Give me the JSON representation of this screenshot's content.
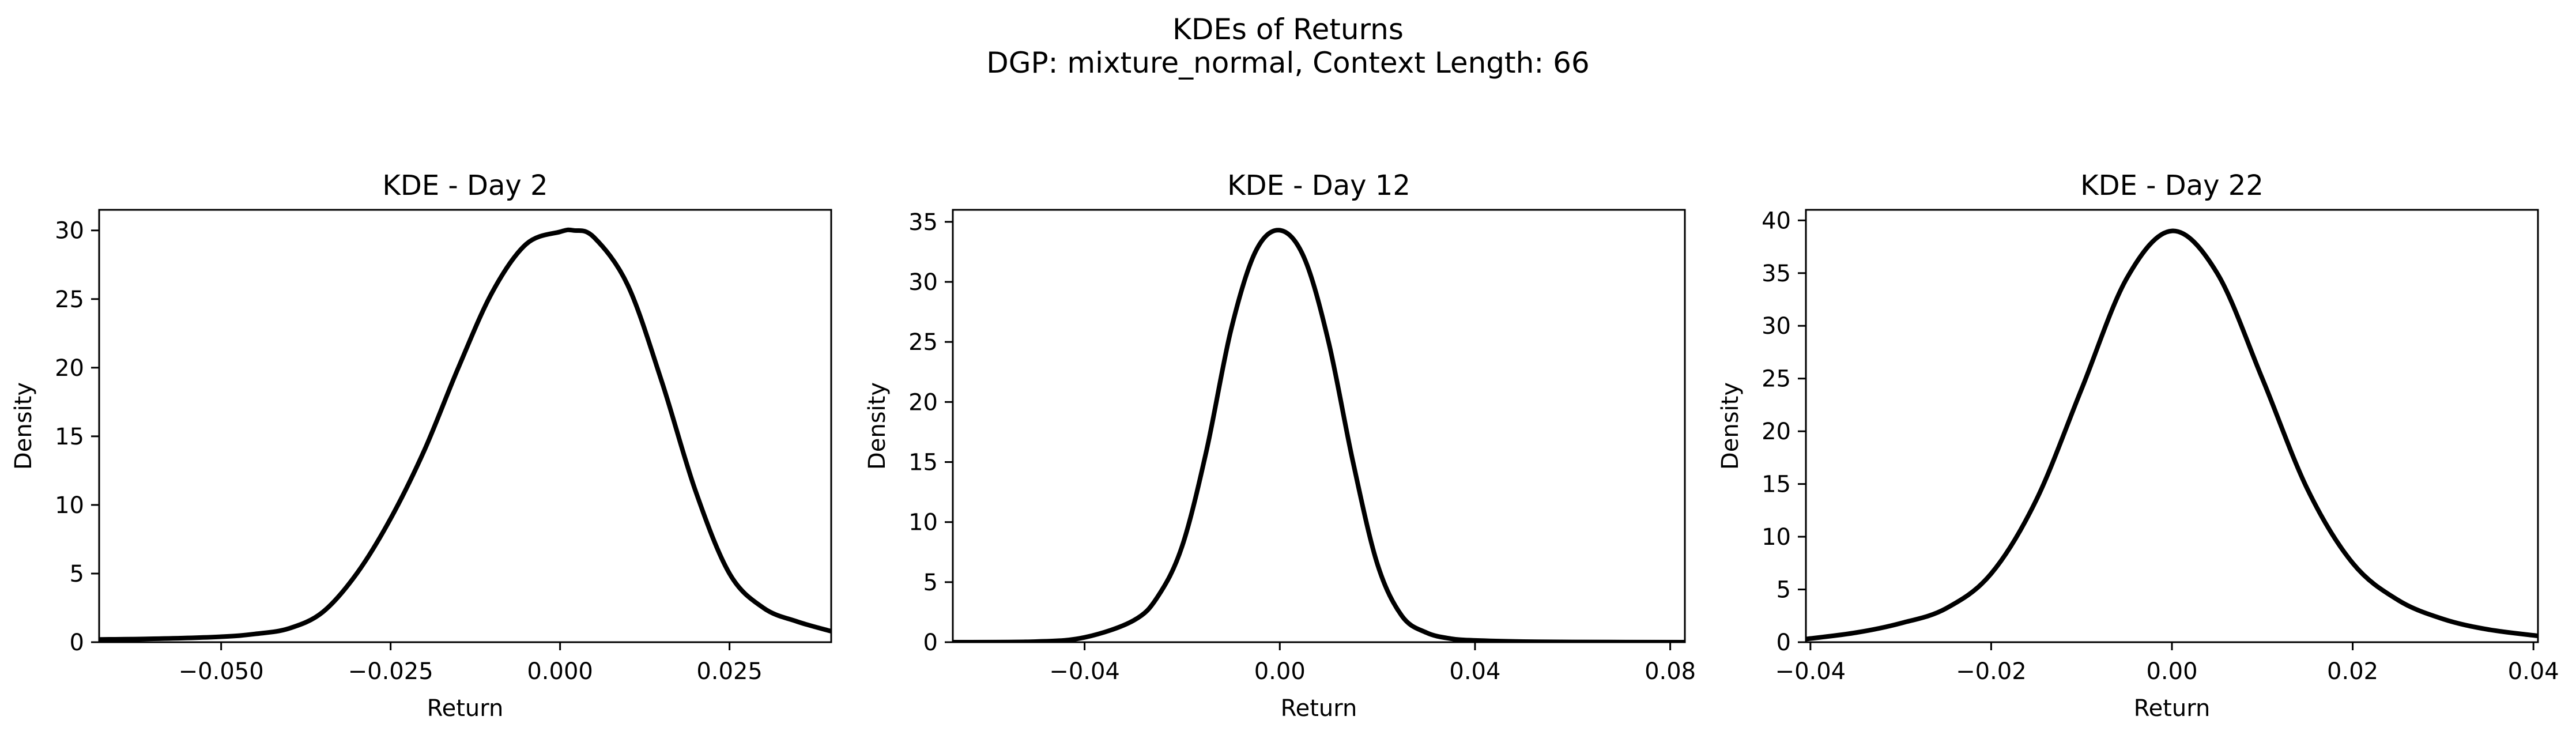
{
  "figure": {
    "title_line1": "KDEs of Returns",
    "title_line2": "DGP: mixture_normal, Context Length: 66",
    "line_color": "#000000",
    "background": "#ffffff"
  },
  "chart_data": [
    {
      "type": "line",
      "title": "KDE - Day 2",
      "xlabel": "Return",
      "ylabel": "Density",
      "xlim": [
        -0.068,
        0.04
      ],
      "ylim": [
        0,
        31.5
      ],
      "xticks": [
        -0.05,
        -0.025,
        0.0,
        0.025
      ],
      "xtick_labels": [
        "−0.050",
        "−0.025",
        "0.000",
        "0.025"
      ],
      "yticks": [
        0,
        5,
        10,
        15,
        20,
        25,
        30
      ],
      "ytick_labels": [
        "0",
        "5",
        "10",
        "15",
        "20",
        "25",
        "30"
      ],
      "grid": false,
      "series": [
        {
          "x": [
            -0.068,
            -0.06,
            -0.05,
            -0.045,
            -0.04,
            -0.035,
            -0.03,
            -0.025,
            -0.02,
            -0.015,
            -0.01,
            -0.005,
            0.0,
            0.002,
            0.005,
            0.01,
            0.015,
            0.02,
            0.025,
            0.03,
            0.035,
            0.04
          ],
          "y": [
            0.2,
            0.25,
            0.4,
            0.6,
            1.0,
            2.2,
            5.0,
            9.0,
            14.0,
            20.0,
            25.5,
            29.0,
            29.9,
            30.0,
            29.5,
            26.0,
            19.0,
            11.0,
            5.0,
            2.5,
            1.5,
            0.8
          ]
        }
      ]
    },
    {
      "type": "line",
      "title": "KDE - Day 12",
      "xlabel": "Return",
      "ylabel": "Density",
      "xlim": [
        -0.067,
        0.083
      ],
      "ylim": [
        0,
        36
      ],
      "xticks": [
        -0.04,
        0.0,
        0.04,
        0.08
      ],
      "xtick_labels": [
        "−0.04",
        "0.00",
        "0.04",
        "0.08"
      ],
      "yticks": [
        0,
        5,
        10,
        15,
        20,
        25,
        30,
        35
      ],
      "ytick_labels": [
        "0",
        "5",
        "10",
        "15",
        "20",
        "25",
        "30",
        "35"
      ],
      "grid": false,
      "series": [
        {
          "x": [
            -0.067,
            -0.05,
            -0.04,
            -0.03,
            -0.025,
            -0.02,
            -0.015,
            -0.01,
            -0.005,
            0.0,
            0.005,
            0.01,
            0.015,
            0.02,
            0.025,
            0.03,
            0.035,
            0.04,
            0.05,
            0.06,
            0.083
          ],
          "y": [
            0.0,
            0.05,
            0.4,
            1.8,
            3.8,
            8.0,
            16.0,
            26.0,
            32.5,
            34.3,
            32.0,
            25.0,
            15.0,
            6.5,
            2.2,
            0.8,
            0.3,
            0.15,
            0.05,
            0.02,
            0.0
          ]
        }
      ]
    },
    {
      "type": "line",
      "title": "KDE - Day 22",
      "xlabel": "Return",
      "ylabel": "Density",
      "xlim": [
        -0.0405,
        0.0405
      ],
      "ylim": [
        0,
        41
      ],
      "xticks": [
        -0.04,
        -0.02,
        0.0,
        0.02,
        0.04
      ],
      "xtick_labels": [
        "−0.04",
        "−0.02",
        "0.00",
        "0.02",
        "0.04"
      ],
      "yticks": [
        0,
        5,
        10,
        15,
        20,
        25,
        30,
        35,
        40
      ],
      "ytick_labels": [
        "0",
        "5",
        "10",
        "15",
        "20",
        "25",
        "30",
        "35",
        "40"
      ],
      "grid": false,
      "series": [
        {
          "x": [
            -0.0405,
            -0.035,
            -0.03,
            -0.025,
            -0.02,
            -0.015,
            -0.01,
            -0.005,
            0.0,
            0.005,
            0.01,
            0.015,
            0.02,
            0.025,
            0.03,
            0.035,
            0.0405
          ],
          "y": [
            0.3,
            0.9,
            1.8,
            3.2,
            6.5,
            13.5,
            24.0,
            34.5,
            39.0,
            35.0,
            25.0,
            14.5,
            7.5,
            4.0,
            2.2,
            1.2,
            0.6
          ]
        }
      ]
    }
  ]
}
